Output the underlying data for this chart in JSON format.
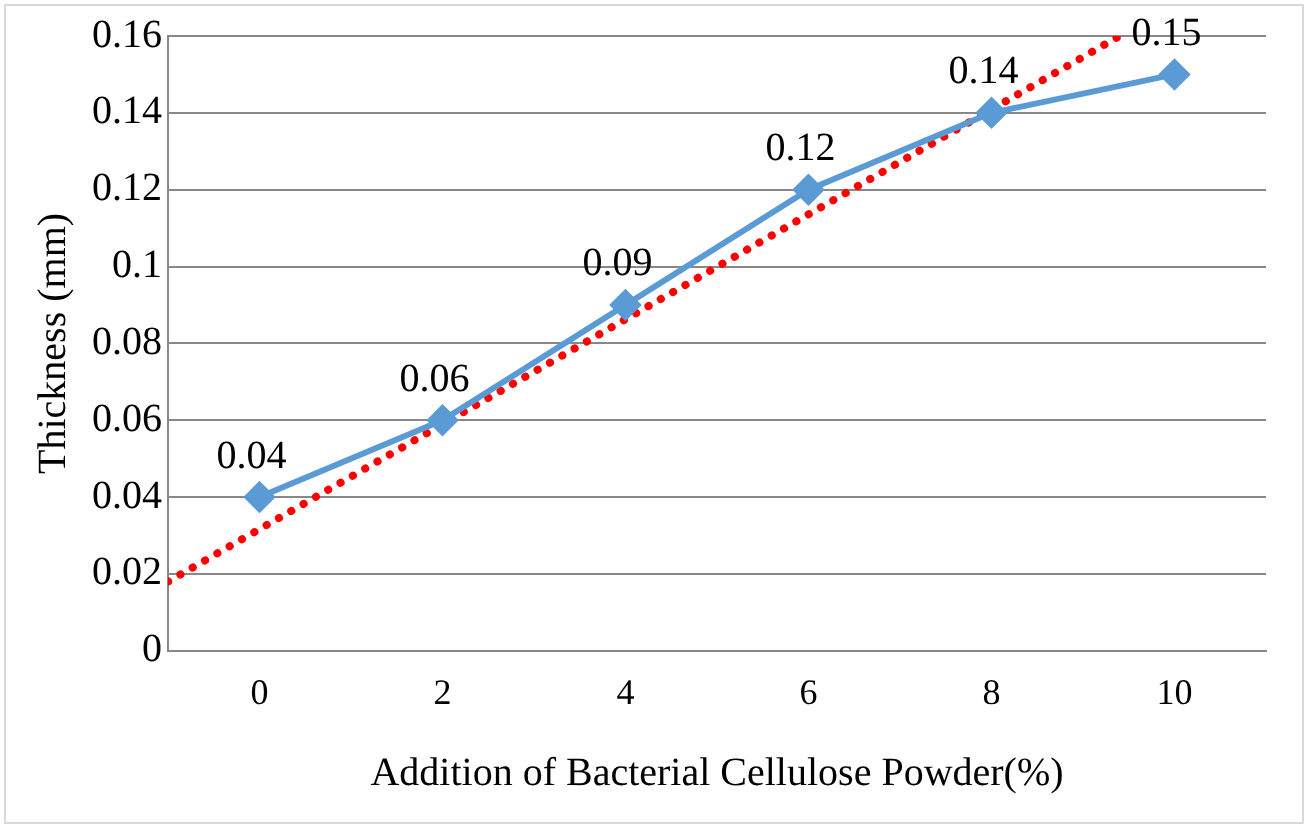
{
  "chart_data": {
    "type": "line",
    "xlabel": "Addition of Bacterial Cellulose Powder(%)",
    "ylabel": "Thickness (mm)",
    "xlim": [
      -1,
      11
    ],
    "xticks": [
      0,
      2,
      4,
      6,
      8,
      10
    ],
    "ylim": [
      0,
      0.16
    ],
    "yticks": [
      0,
      0.02,
      0.04,
      0.06,
      0.08,
      0.1,
      0.12,
      0.14,
      0.16
    ],
    "grid": "y",
    "legend": false,
    "series": [
      {
        "x": [
          0,
          2,
          4,
          6,
          8,
          10
        ],
        "values": [
          0.04,
          0.06,
          0.09,
          0.12,
          0.14,
          0.15
        ],
        "color": "#5b9bd5",
        "marker": "diamond",
        "line_style": "solid",
        "value_labels": [
          "0.04",
          "0.06",
          "0.09",
          "0.12",
          "0.14",
          "0.15"
        ]
      },
      {
        "type": "line",
        "x": [
          -1,
          9.4
        ],
        "values": [
          0.018,
          0.16
        ],
        "color": "#ff0000",
        "marker": "none",
        "line_style": "dotted"
      }
    ]
  }
}
